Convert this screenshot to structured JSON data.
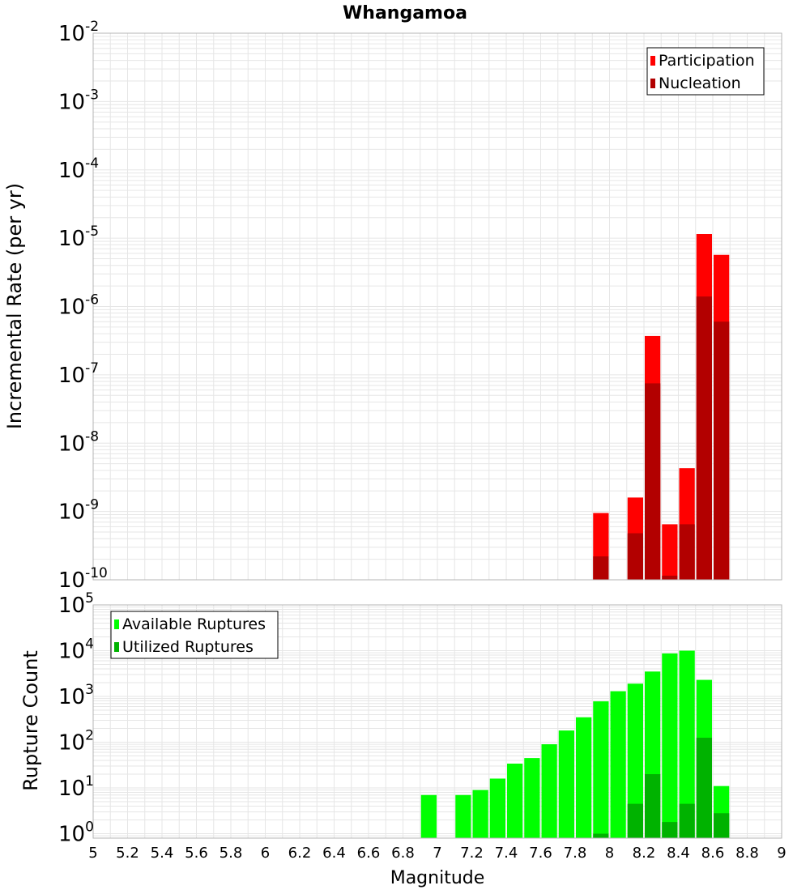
{
  "title": "Whangamoa",
  "xlabel": "Magnitude",
  "x_ticks": [
    "5",
    "5.2",
    "5.4",
    "5.6",
    "5.8",
    "6",
    "6.2",
    "6.4",
    "6.6",
    "6.8",
    "7",
    "7.2",
    "7.4",
    "7.6",
    "7.8",
    "8",
    "8.2",
    "8.4",
    "8.6",
    "8.8",
    "9"
  ],
  "colors": {
    "participation": "#ff0000",
    "nucleation": "#b20000",
    "available": "#00ff00",
    "utilized": "#00b200",
    "grid": "#e6e6e6",
    "frame": "#b4b4b4"
  },
  "chart_data": [
    {
      "type": "bar",
      "ylabel": "Incremental Rate (per yr)",
      "yscale": "log",
      "ylim": [
        1e-10,
        0.01
      ],
      "y_ticks": [
        {
          "base": "10",
          "exp": "-10"
        },
        {
          "base": "10",
          "exp": "-9"
        },
        {
          "base": "10",
          "exp": "-8"
        },
        {
          "base": "10",
          "exp": "-7"
        },
        {
          "base": "10",
          "exp": "-6"
        },
        {
          "base": "10",
          "exp": "-5"
        },
        {
          "base": "10",
          "exp": "-4"
        },
        {
          "base": "10",
          "exp": "-3"
        },
        {
          "base": "10",
          "exp": "-2"
        }
      ],
      "xlim": [
        5,
        9
      ],
      "grid": true,
      "legend_position": "top-right",
      "series": [
        {
          "name": "Participation",
          "x": [
            7.95,
            8.15,
            8.25,
            8.35,
            8.45,
            8.55,
            8.65
          ],
          "values": [
            9.5e-10,
            1.6e-09,
            3.7e-07,
            6.5e-10,
            4.3e-09,
            1.15e-05,
            5.7e-06
          ]
        },
        {
          "name": "Nucleation",
          "x": [
            7.95,
            8.15,
            8.25,
            8.35,
            8.45,
            8.55,
            8.65
          ],
          "values": [
            2.2e-10,
            4.8e-10,
            7.5e-08,
            1.15e-10,
            6.5e-10,
            1.4e-06,
            6e-07
          ]
        }
      ]
    },
    {
      "type": "bar",
      "ylabel": "Rupture Count",
      "yscale": "log",
      "ylim": [
        0.8,
        100000
      ],
      "y_ticks": [
        {
          "base": "10",
          "exp": "0"
        },
        {
          "base": "10",
          "exp": "1"
        },
        {
          "base": "10",
          "exp": "2"
        },
        {
          "base": "10",
          "exp": "3"
        },
        {
          "base": "10",
          "exp": "4"
        },
        {
          "base": "10",
          "exp": "5"
        }
      ],
      "xlim": [
        5,
        9
      ],
      "grid": true,
      "legend_position": "top-left",
      "series": [
        {
          "name": "Available Ruptures",
          "x": [
            6.95,
            7.15,
            7.25,
            7.35,
            7.45,
            7.55,
            7.65,
            7.75,
            7.85,
            7.95,
            8.05,
            8.15,
            8.25,
            8.35,
            8.45,
            8.55,
            8.65
          ],
          "values": [
            7,
            7,
            9,
            16,
            34,
            45,
            90,
            180,
            350,
            780,
            1300,
            1900,
            3500,
            8700,
            10000,
            2300,
            11
          ]
        },
        {
          "name": "Utilized Ruptures",
          "x": [
            7.95,
            8.15,
            8.25,
            8.35,
            8.45,
            8.55,
            8.65
          ],
          "values": [
            1,
            4.5,
            20,
            1.8,
            4.5,
            125,
            2.8
          ]
        }
      ]
    }
  ]
}
